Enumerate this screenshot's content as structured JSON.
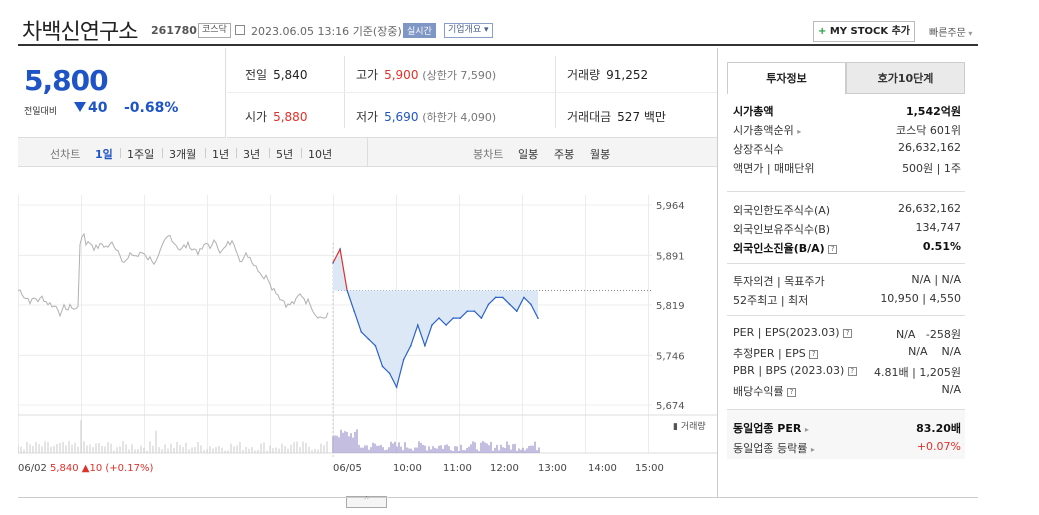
{
  "header": {
    "stock_name": "차백신연구소",
    "stock_code": "261780",
    "market": "코스닥",
    "datetime": "2023.06.05 13:16",
    "basis": "기준(장중)",
    "realtime": "실시간",
    "company_overview": "기업개요",
    "my_stock": "MY STOCK 추가",
    "my_stock_plus": "+",
    "quick_order": "빠른주문"
  },
  "price": {
    "current": "5,800",
    "compare_label": "전일대비",
    "change": "40",
    "change_pct": "-0.68%"
  },
  "stats": {
    "prev_close_label": "전일",
    "prev_close": "5,840",
    "high_label": "고가",
    "high": "5,900",
    "upper_limit": "(상한가 7,590)",
    "volume_label": "거래량",
    "volume": "91,252",
    "open_label": "시가",
    "open": "5,880",
    "low_label": "저가",
    "low": "5,690",
    "lower_limit": "(하한가 4,090)",
    "amount_label": "거래대금",
    "amount": "527 백만"
  },
  "toolbar": {
    "line_label": "선차트",
    "periods": [
      "1일",
      "1주일",
      "3개월",
      "1년",
      "3년",
      "5년",
      "10년"
    ],
    "selected": "1일",
    "candle_label": "봉차트",
    "candles": [
      "일봉",
      "주봉",
      "월봉"
    ]
  },
  "chart_data": {
    "type": "line",
    "y_ticks": [
      "5,964",
      "5,891",
      "5,819",
      "5,746",
      "5,674"
    ],
    "ylim": [
      5674,
      5964
    ],
    "x_labels": [
      "06/02",
      "06/05",
      "10:00",
      "11:00",
      "12:00",
      "13:00",
      "14:00",
      "15:00"
    ],
    "volume_label": "거래량",
    "prev_day_summary": {
      "date": "06/02",
      "price": "5,840",
      "change": "▲10 (+0.17%)"
    },
    "prev_close_ref": 5840,
    "series": [
      {
        "x": [
          "09:00",
          "09:05",
          "09:10",
          "09:15",
          "09:20",
          "09:30",
          "09:40",
          "09:50",
          "10:00",
          "10:10",
          "10:20",
          "10:30",
          "10:40",
          "10:50",
          "11:00",
          "11:10",
          "11:20",
          "11:30",
          "11:40",
          "11:50",
          "12:00",
          "12:10",
          "12:20",
          "12:30",
          "12:40",
          "12:50",
          "13:00",
          "13:05",
          "13:10",
          "13:16"
        ],
        "values": [
          5880,
          5900,
          5840,
          5810,
          5780,
          5770,
          5760,
          5730,
          5720,
          5700,
          5740,
          5760,
          5790,
          5760,
          5790,
          5800,
          5790,
          5800,
          5800,
          5810,
          5810,
          5800,
          5820,
          5830,
          5830,
          5820,
          5810,
          5830,
          5820,
          5800
        ]
      }
    ]
  },
  "panel": {
    "tab_info": "투자정보",
    "tab_quote": "호가10단계",
    "rows1": [
      {
        "k": "시가총액",
        "v": "1,542억원"
      },
      {
        "k": "시가총액순위",
        "v": "코스닥 601위"
      },
      {
        "k": "상장주식수",
        "v": "26,632,162"
      },
      {
        "k": "액면가 | 매매단위",
        "v": "500원 | 1주"
      }
    ],
    "rows2": [
      {
        "k": "외국인한도주식수(A)",
        "v": "26,632,162"
      },
      {
        "k": "외국인보유주식수(B)",
        "v": "134,747"
      },
      {
        "k": "외국인소진율(B/A)",
        "v": "0.51%"
      }
    ],
    "rows3": [
      {
        "k": "투자의견 | 목표주가",
        "v": "N/A | N/A"
      },
      {
        "k": "52주최고 | 최저",
        "v": "10,950 | 4,550"
      }
    ],
    "rows4": [
      {
        "k": "PER | EPS(2023.03)",
        "v1": "N/A",
        "v2": "-258원"
      },
      {
        "k": "추정PER | EPS",
        "v1": "N/A",
        "v2": "N/A"
      },
      {
        "k": "PBR | BPS (2023.03)",
        "v1": "4.81배",
        "v2": "1,205원"
      },
      {
        "k": "배당수익률",
        "v": "N/A"
      }
    ],
    "rows5": [
      {
        "k": "동일업종 PER",
        "v": "83.20배"
      },
      {
        "k": "동일업종 등락률",
        "v": "+0.07%"
      }
    ],
    "colors": {
      "up": "#e0302a",
      "down": "#1f54c7"
    }
  }
}
